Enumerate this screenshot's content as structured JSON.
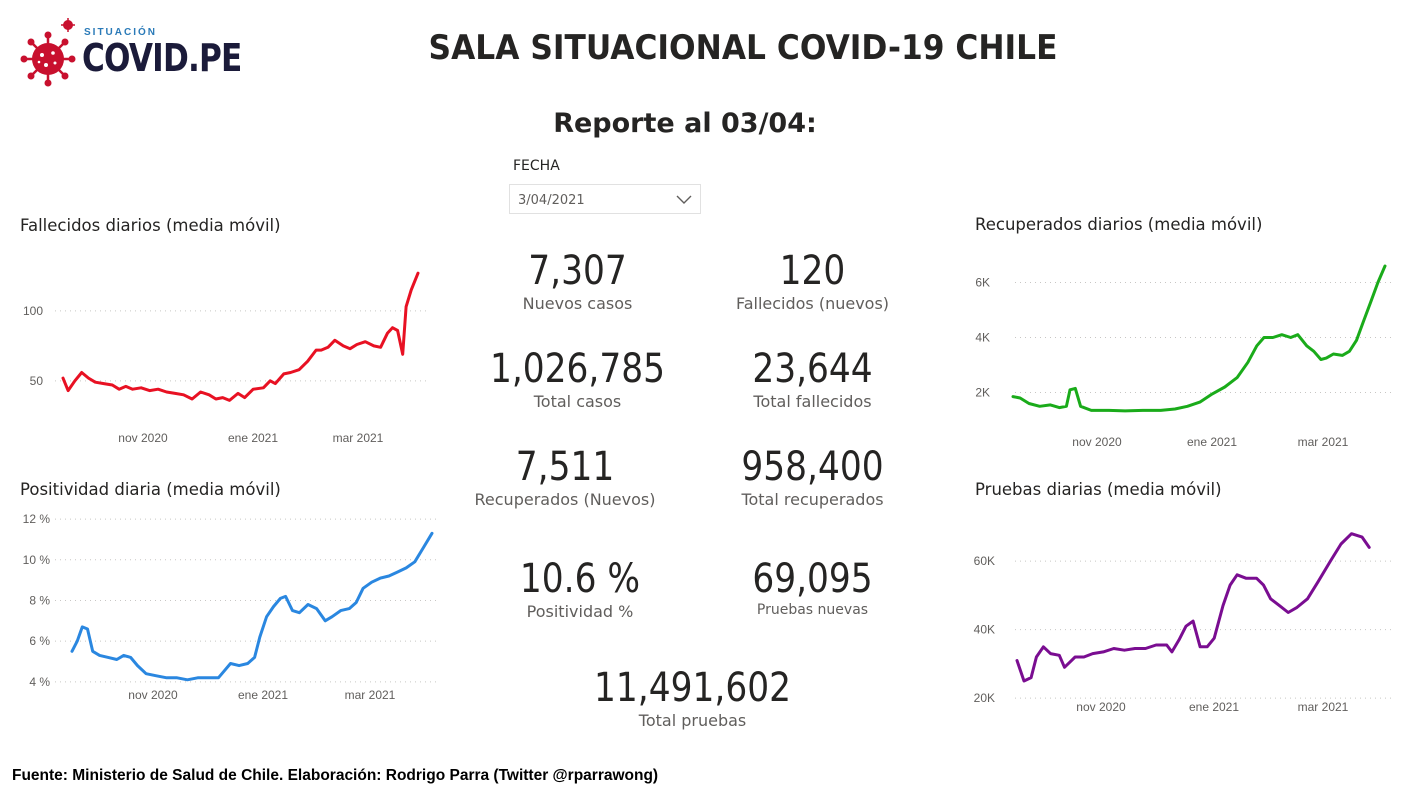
{
  "logo": {
    "small_text": "SITUACIÓN",
    "big_text": "COVID.PE",
    "color": "#c8102e"
  },
  "header": {
    "title": "SALA SITUACIONAL COVID-19 CHILE",
    "subtitle": "Reporte al 03/04:"
  },
  "filter": {
    "label": "FECHA",
    "value": "3/04/2021",
    "icon": "chevron-down-icon"
  },
  "kpis": {
    "nuevos_casos": {
      "value": "7,307",
      "label": "Nuevos casos"
    },
    "fallecidos_nuevos": {
      "value": "120",
      "label": "Fallecidos (nuevos)"
    },
    "total_casos": {
      "value": "1,026,785",
      "label": "Total casos"
    },
    "total_fallecidos": {
      "value": "23,644",
      "label": "Total fallecidos"
    },
    "recuperados_nuevos": {
      "value": "7,511",
      "label": "Recuperados (Nuevos)"
    },
    "total_recuperados": {
      "value": "958,400",
      "label": "Total recuperados"
    },
    "positividad": {
      "value": "10.6 %",
      "label": "Positividad %"
    },
    "pruebas_nuevas": {
      "value": "69,095",
      "label": "Pruebas nuevas"
    },
    "total_pruebas": {
      "value": "11,491,602",
      "label": "Total pruebas"
    }
  },
  "footer": {
    "text": "Fuente: Ministerio de Salud de Chile. Elaboración: Rodrigo Parra (Twitter @rparrawong)"
  },
  "chart_data": [
    {
      "id": "fallecidos",
      "type": "line",
      "title": "Fallecidos diarios (media móvil)",
      "color": "#e81123",
      "x_ticks": [
        "nov 2020",
        "ene 2021",
        "mar 2021"
      ],
      "y_ticks": [
        {
          "v": 50,
          "label": "50"
        },
        {
          "v": 100,
          "label": "100"
        }
      ],
      "ylim": [
        22,
        140
      ],
      "x_start": "2020-09-06",
      "x_end": "2021-04-03",
      "points": [
        [
          "2020-09-06",
          52
        ],
        [
          "2020-09-09",
          43
        ],
        [
          "2020-09-13",
          50
        ],
        [
          "2020-09-17",
          56
        ],
        [
          "2020-09-21",
          52
        ],
        [
          "2020-09-25",
          49
        ],
        [
          "2020-09-30",
          48
        ],
        [
          "2020-10-05",
          47
        ],
        [
          "2020-10-09",
          44
        ],
        [
          "2020-10-13",
          46
        ],
        [
          "2020-10-17",
          44
        ],
        [
          "2020-10-22",
          45
        ],
        [
          "2020-10-27",
          43
        ],
        [
          "2020-11-01",
          44
        ],
        [
          "2020-11-06",
          42
        ],
        [
          "2020-11-11",
          41
        ],
        [
          "2020-11-16",
          40
        ],
        [
          "2020-11-21",
          37
        ],
        [
          "2020-11-26",
          42
        ],
        [
          "2020-12-01",
          40
        ],
        [
          "2020-12-05",
          37
        ],
        [
          "2020-12-09",
          38
        ],
        [
          "2020-12-13",
          36
        ],
        [
          "2020-12-18",
          41
        ],
        [
          "2020-12-22",
          38
        ],
        [
          "2020-12-27",
          44
        ],
        [
          "2021-01-02",
          45
        ],
        [
          "2021-01-06",
          50
        ],
        [
          "2021-01-09",
          48
        ],
        [
          "2021-01-14",
          55
        ],
        [
          "2021-01-18",
          56
        ],
        [
          "2021-01-23",
          58
        ],
        [
          "2021-01-28",
          64
        ],
        [
          "2021-02-02",
          72
        ],
        [
          "2021-02-05",
          72
        ],
        [
          "2021-02-09",
          74
        ],
        [
          "2021-02-13",
          79
        ],
        [
          "2021-02-18",
          75
        ],
        [
          "2021-02-22",
          73
        ],
        [
          "2021-02-26",
          76
        ],
        [
          "2021-03-03",
          78
        ],
        [
          "2021-03-08",
          75
        ],
        [
          "2021-03-12",
          74
        ],
        [
          "2021-03-16",
          84
        ],
        [
          "2021-03-19",
          88
        ],
        [
          "2021-03-22",
          86
        ],
        [
          "2021-03-25",
          69
        ],
        [
          "2021-03-27",
          103
        ],
        [
          "2021-03-30",
          115
        ],
        [
          "2021-04-03",
          127
        ]
      ]
    },
    {
      "id": "positividad",
      "type": "line",
      "title": "Positividad diaria (media móvil)",
      "color": "#2a87e0",
      "x_ticks": [
        "nov 2020",
        "ene 2021",
        "mar 2021"
      ],
      "y_ticks": [
        {
          "v": 4,
          "label": "4 %"
        },
        {
          "v": 6,
          "label": "6 %"
        },
        {
          "v": 8,
          "label": "8 %"
        },
        {
          "v": 10,
          "label": "10 %"
        },
        {
          "v": 12,
          "label": "12 %"
        }
      ],
      "ylim": [
        3.6,
        12.2
      ],
      "x_start": "2020-09-06",
      "x_end": "2021-04-03",
      "points": [
        [
          "2020-09-06",
          5.5
        ],
        [
          "2020-09-09",
          6.0
        ],
        [
          "2020-09-12",
          6.7
        ],
        [
          "2020-09-15",
          6.6
        ],
        [
          "2020-09-18",
          5.5
        ],
        [
          "2020-09-22",
          5.3
        ],
        [
          "2020-09-27",
          5.2
        ],
        [
          "2020-10-02",
          5.1
        ],
        [
          "2020-10-06",
          5.3
        ],
        [
          "2020-10-10",
          5.2
        ],
        [
          "2020-10-14",
          4.8
        ],
        [
          "2020-10-19",
          4.4
        ],
        [
          "2020-10-25",
          4.3
        ],
        [
          "2020-10-31",
          4.2
        ],
        [
          "2020-11-06",
          4.2
        ],
        [
          "2020-11-12",
          4.1
        ],
        [
          "2020-11-18",
          4.2
        ],
        [
          "2020-11-24",
          4.2
        ],
        [
          "2020-11-30",
          4.2
        ],
        [
          "2020-12-03",
          4.5
        ],
        [
          "2020-12-07",
          4.9
        ],
        [
          "2020-12-12",
          4.8
        ],
        [
          "2020-12-17",
          4.9
        ],
        [
          "2020-12-21",
          5.2
        ],
        [
          "2020-12-24",
          6.2
        ],
        [
          "2020-12-28",
          7.2
        ],
        [
          "2021-01-01",
          7.7
        ],
        [
          "2021-01-05",
          8.1
        ],
        [
          "2021-01-08",
          8.2
        ],
        [
          "2021-01-12",
          7.5
        ],
        [
          "2021-01-16",
          7.4
        ],
        [
          "2021-01-21",
          7.8
        ],
        [
          "2021-01-26",
          7.6
        ],
        [
          "2021-01-31",
          7.0
        ],
        [
          "2021-02-04",
          7.2
        ],
        [
          "2021-02-09",
          7.5
        ],
        [
          "2021-02-14",
          7.6
        ],
        [
          "2021-02-18",
          7.9
        ],
        [
          "2021-02-22",
          8.6
        ],
        [
          "2021-02-27",
          8.9
        ],
        [
          "2021-03-04",
          9.1
        ],
        [
          "2021-03-09",
          9.2
        ],
        [
          "2021-03-14",
          9.4
        ],
        [
          "2021-03-19",
          9.6
        ],
        [
          "2021-03-24",
          9.9
        ],
        [
          "2021-03-29",
          10.6
        ],
        [
          "2021-04-03",
          11.3
        ]
      ]
    },
    {
      "id": "recuperados",
      "type": "line",
      "title": "Recuperados diarios (media móvil)",
      "color": "#1aab1a",
      "x_ticks": [
        "nov 2020",
        "ene 2021",
        "mar 2021"
      ],
      "y_ticks": [
        {
          "v": 2000,
          "label": "2K"
        },
        {
          "v": 4000,
          "label": "4K"
        },
        {
          "v": 6000,
          "label": "6K"
        }
      ],
      "ylim": [
        1000,
        7000
      ],
      "x_start": "2020-09-06",
      "x_end": "2021-04-03",
      "points": [
        [
          "2020-09-06",
          1850
        ],
        [
          "2020-09-10",
          1800
        ],
        [
          "2020-09-15",
          1600
        ],
        [
          "2020-09-21",
          1500
        ],
        [
          "2020-09-27",
          1550
        ],
        [
          "2020-10-02",
          1450
        ],
        [
          "2020-10-06",
          1500
        ],
        [
          "2020-10-08",
          2100
        ],
        [
          "2020-10-11",
          2150
        ],
        [
          "2020-10-14",
          1500
        ],
        [
          "2020-10-20",
          1350
        ],
        [
          "2020-10-30",
          1350
        ],
        [
          "2020-11-08",
          1330
        ],
        [
          "2020-11-18",
          1350
        ],
        [
          "2020-11-28",
          1350
        ],
        [
          "2020-12-06",
          1400
        ],
        [
          "2020-12-13",
          1500
        ],
        [
          "2020-12-20",
          1650
        ],
        [
          "2020-12-27",
          1950
        ],
        [
          "2021-01-03",
          2200
        ],
        [
          "2021-01-10",
          2550
        ],
        [
          "2021-01-16",
          3100
        ],
        [
          "2021-01-21",
          3700
        ],
        [
          "2021-01-25",
          4000
        ],
        [
          "2021-01-30",
          4000
        ],
        [
          "2021-02-04",
          4100
        ],
        [
          "2021-02-09",
          4000
        ],
        [
          "2021-02-13",
          4100
        ],
        [
          "2021-02-18",
          3700
        ],
        [
          "2021-02-22",
          3500
        ],
        [
          "2021-02-26",
          3200
        ],
        [
          "2021-03-01",
          3250
        ],
        [
          "2021-03-05",
          3400
        ],
        [
          "2021-03-10",
          3350
        ],
        [
          "2021-03-14",
          3500
        ],
        [
          "2021-03-18",
          3900
        ],
        [
          "2021-03-22",
          4600
        ],
        [
          "2021-03-26",
          5300
        ],
        [
          "2021-03-30",
          6000
        ],
        [
          "2021-04-03",
          6600
        ]
      ]
    },
    {
      "id": "pruebas",
      "type": "line",
      "title": "Pruebas diarias (media móvil)",
      "color": "#7a0d91",
      "x_ticks": [
        "nov 2020",
        "ene 2021",
        "mar 2021"
      ],
      "y_ticks": [
        {
          "v": 20000,
          "label": "20K"
        },
        {
          "v": 40000,
          "label": "40K"
        },
        {
          "v": 60000,
          "label": "60K"
        }
      ],
      "ylim": [
        18000,
        72000
      ],
      "x_start": "2020-09-06",
      "x_end": "2021-04-03",
      "points": [
        [
          "2020-09-06",
          31000
        ],
        [
          "2020-09-10",
          25000
        ],
        [
          "2020-09-14",
          26000
        ],
        [
          "2020-09-17",
          32000
        ],
        [
          "2020-09-21",
          35000
        ],
        [
          "2020-09-25",
          33000
        ],
        [
          "2020-09-30",
          32500
        ],
        [
          "2020-10-03",
          29000
        ],
        [
          "2020-10-06",
          30500
        ],
        [
          "2020-10-09",
          32000
        ],
        [
          "2020-10-14",
          32000
        ],
        [
          "2020-10-19",
          33000
        ],
        [
          "2020-10-25",
          33500
        ],
        [
          "2020-10-31",
          34500
        ],
        [
          "2020-11-06",
          34000
        ],
        [
          "2020-11-12",
          34500
        ],
        [
          "2020-11-18",
          34500
        ],
        [
          "2020-11-24",
          35500
        ],
        [
          "2020-11-30",
          35500
        ],
        [
          "2020-12-03",
          33500
        ],
        [
          "2020-12-07",
          37000
        ],
        [
          "2020-12-11",
          41000
        ],
        [
          "2020-12-15",
          42500
        ],
        [
          "2020-12-19",
          35000
        ],
        [
          "2020-12-23",
          35000
        ],
        [
          "2020-12-27",
          37500
        ],
        [
          "2021-01-01",
          47000
        ],
        [
          "2021-01-05",
          53000
        ],
        [
          "2021-01-09",
          56000
        ],
        [
          "2021-01-14",
          55000
        ],
        [
          "2021-01-20",
          55000
        ],
        [
          "2021-01-24",
          53000
        ],
        [
          "2021-01-28",
          49000
        ],
        [
          "2021-02-02",
          47000
        ],
        [
          "2021-02-07",
          45000
        ],
        [
          "2021-02-12",
          46500
        ],
        [
          "2021-02-18",
          49000
        ],
        [
          "2021-02-24",
          54000
        ],
        [
          "2021-03-03",
          60000
        ],
        [
          "2021-03-09",
          65000
        ],
        [
          "2021-03-15",
          68000
        ],
        [
          "2021-03-21",
          67000
        ],
        [
          "2021-03-25",
          64000
        ]
      ]
    }
  ]
}
